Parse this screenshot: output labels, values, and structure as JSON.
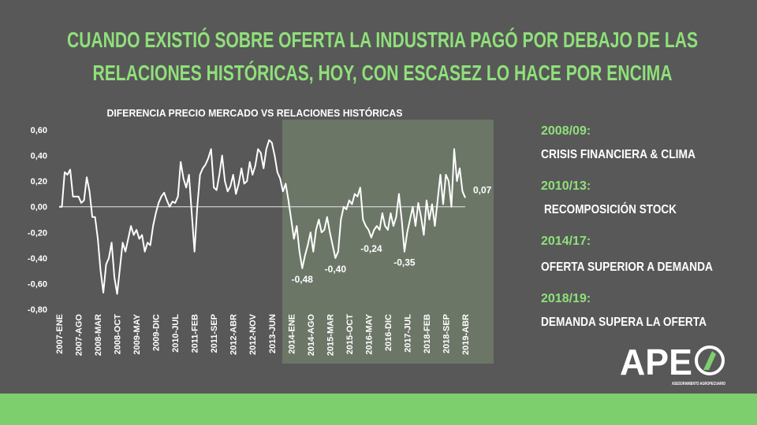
{
  "slide_title": [
    "CUANDO EXISTIÓ SOBRE OFERTA LA INDUSTRIA PAGÓ POR DEBAJO DE LAS",
    "RELACIONES HISTÓRICAS, HOY, CON ESCASEZ LO HACE POR ENCIMA"
  ],
  "notes": [
    {
      "period": "2008/09:",
      "text": "CRISIS FINANCIERA & CLIMA"
    },
    {
      "period": "2010/13:",
      "text": "RECOMPOSICIÓN STOCK"
    },
    {
      "period": "2014/17:",
      "text": "OFERTA SUPERIOR A DEMANDA"
    },
    {
      "period": "2018/19:",
      "text": "DEMANDA SUPERA LA OFERTA"
    }
  ],
  "logo": {
    "name": "APE",
    "subtitle": "ASESORAMIENTO AGROPECUARIO"
  },
  "chart_data": {
    "type": "line",
    "title": "DIFERENCIA PRECIO MERCADO VS RELACIONES HISTÓRICAS",
    "color": "#ffffff",
    "categories": [
      "2007-ENE",
      null,
      null,
      null,
      null,
      null,
      null,
      "2007-AGO",
      null,
      null,
      null,
      null,
      null,
      null,
      "2008-MAR",
      null,
      null,
      null,
      null,
      null,
      null,
      "2008-OCT",
      null,
      null,
      null,
      null,
      null,
      null,
      "2009-MAY",
      null,
      null,
      null,
      null,
      null,
      null,
      "2009-DIC",
      null,
      null,
      null,
      null,
      null,
      null,
      "2010-JUL",
      null,
      null,
      null,
      null,
      null,
      null,
      "2011-FEB",
      null,
      null,
      null,
      null,
      null,
      null,
      "2011-SEP",
      null,
      null,
      null,
      null,
      null,
      null,
      "2012-ABR",
      null,
      null,
      null,
      null,
      null,
      null,
      "2012-NOV",
      null,
      null,
      null,
      null,
      null,
      null,
      "2013-JUN",
      null,
      null,
      null,
      null,
      null,
      null,
      "2014-ENE",
      null,
      null,
      null,
      null,
      null,
      null,
      "2014-AGO",
      null,
      null,
      null,
      null,
      null,
      null,
      "2015-MAR",
      null,
      null,
      null,
      null,
      null,
      null,
      "2015-OCT",
      null,
      null,
      null,
      null,
      null,
      null,
      "2016-MAY",
      null,
      null,
      null,
      null,
      null,
      null,
      "2016-DIC",
      null,
      null,
      null,
      null,
      null,
      null,
      "2017-JUL",
      null,
      null,
      null,
      null,
      null,
      null,
      "2018-FEB",
      null,
      null,
      null,
      null,
      null,
      null,
      "2018-SEP",
      null,
      null,
      null,
      null,
      null,
      null,
      "2019-ABR"
    ],
    "values": [
      0.0,
      0.0,
      0.27,
      0.25,
      0.29,
      0.08,
      0.08,
      0.08,
      0.03,
      0.05,
      0.23,
      0.12,
      -0.08,
      -0.08,
      -0.25,
      -0.5,
      -0.67,
      -0.45,
      -0.4,
      -0.28,
      -0.55,
      -0.68,
      -0.48,
      -0.28,
      -0.35,
      -0.25,
      -0.15,
      -0.22,
      -0.18,
      -0.25,
      -0.22,
      -0.35,
      -0.28,
      -0.3,
      -0.15,
      -0.05,
      0.03,
      0.08,
      0.11,
      0.05,
      0.0,
      0.04,
      0.03,
      0.08,
      0.35,
      0.22,
      0.15,
      0.25,
      -0.05,
      -0.35,
      0.0,
      0.25,
      0.3,
      0.33,
      0.38,
      0.45,
      0.15,
      0.13,
      0.25,
      0.4,
      0.2,
      0.12,
      0.16,
      0.25,
      0.1,
      0.18,
      0.3,
      0.18,
      0.2,
      0.35,
      0.25,
      0.32,
      0.45,
      0.42,
      0.3,
      0.45,
      0.52,
      0.5,
      0.4,
      0.27,
      0.22,
      0.12,
      0.18,
      0.05,
      -0.1,
      -0.25,
      -0.15,
      -0.35,
      -0.48,
      -0.38,
      -0.3,
      -0.2,
      -0.35,
      -0.18,
      -0.1,
      -0.2,
      -0.18,
      -0.08,
      -0.2,
      -0.3,
      -0.4,
      -0.35,
      -0.1,
      0.0,
      -0.02,
      0.05,
      0.02,
      0.1,
      0.08,
      0.15,
      -0.1,
      -0.15,
      -0.18,
      -0.24,
      -0.18,
      -0.15,
      -0.18,
      -0.05,
      -0.15,
      -0.18,
      -0.05,
      -0.15,
      -0.08,
      0.1,
      -0.1,
      -0.35,
      -0.2,
      -0.1,
      0.0,
      -0.15,
      0.03,
      -0.08,
      -0.22,
      0.05,
      -0.1,
      0.02,
      -0.15,
      0.05,
      0.25,
      0.02,
      0.25,
      0.2,
      0.0,
      0.45,
      0.2,
      0.3,
      0.12,
      0.07
    ],
    "value_labels": [
      null,
      null,
      null,
      null,
      null,
      null,
      null,
      null,
      null,
      null,
      null,
      null,
      null,
      null,
      null,
      null,
      null,
      null,
      null,
      null,
      null,
      null,
      null,
      null,
      null,
      null,
      null,
      null,
      null,
      null,
      null,
      null,
      null,
      null,
      null,
      null,
      null,
      null,
      null,
      null,
      null,
      null,
      null,
      null,
      null,
      null,
      null,
      null,
      null,
      null,
      null,
      null,
      null,
      null,
      null,
      null,
      null,
      null,
      null,
      null,
      null,
      null,
      null,
      null,
      null,
      null,
      null,
      null,
      null,
      null,
      null,
      null,
      null,
      null,
      null,
      null,
      null,
      null,
      null,
      null,
      null,
      null,
      null,
      null,
      null,
      null,
      null,
      null,
      "-0,48",
      null,
      null,
      null,
      null,
      null,
      null,
      null,
      null,
      null,
      null,
      null,
      "-0,40",
      null,
      null,
      null,
      null,
      null,
      null,
      null,
      null,
      null,
      null,
      null,
      null,
      "-0,24",
      null,
      null,
      null,
      null,
      null,
      null,
      null,
      null,
      null,
      null,
      null,
      "-0,35",
      null,
      null,
      null,
      null,
      null,
      null,
      null,
      null,
      null,
      null,
      null,
      null,
      null,
      null,
      null,
      null,
      null,
      null,
      null,
      null,
      null,
      "0,07"
    ],
    "ylim": [
      -0.8,
      0.6
    ],
    "yticks": [
      {
        "value": 0.6,
        "label": "0,60"
      },
      {
        "value": 0.4,
        "label": "0,40"
      },
      {
        "value": 0.2,
        "label": "0,20"
      },
      {
        "value": 0,
        "label": "0,00"
      },
      {
        "value": -0.2,
        "label": "-0,20"
      },
      {
        "value": -0.4,
        "label": "-0,40"
      },
      {
        "value": -0.6,
        "label": "-0,60"
      },
      {
        "value": -0.8,
        "label": "-0,80"
      }
    ]
  }
}
